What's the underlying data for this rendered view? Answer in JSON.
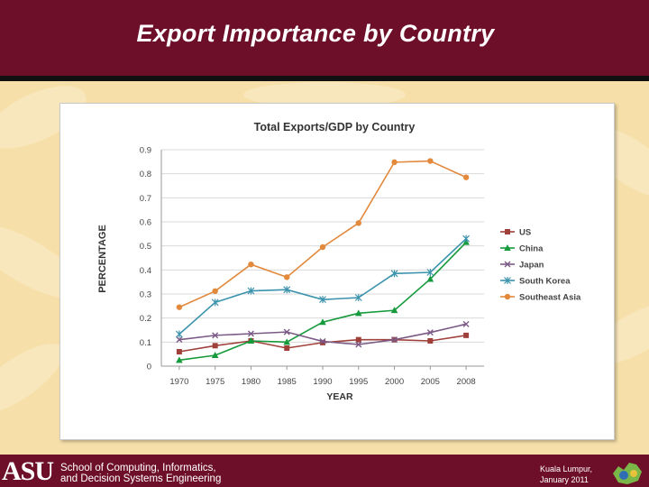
{
  "slide": {
    "title": "Export Importance by Country",
    "footer": {
      "logo": "ASU",
      "school_line1": "School of Computing, Informatics,",
      "school_line2": "and Decision Systems Engineering",
      "location": "Kuala Lumpur,",
      "date": "January 2011"
    }
  },
  "colors": {
    "header_bg": "#6e0f2a",
    "background": "#f6dfa8",
    "US": "#a0403a",
    "China": "#169a3c",
    "Japan": "#7b5a86",
    "South Korea": "#3c93ad",
    "Southeast Asia": "#e2893c"
  },
  "chart_data": {
    "type": "line",
    "title": "Total Exports/GDP by Country",
    "xlabel": "YEAR",
    "ylabel": "PERCENTAGE",
    "categories": [
      "1970",
      "1975",
      "1980",
      "1985",
      "1990",
      "1995",
      "2000",
      "2005",
      "2008"
    ],
    "yticks": [
      "0",
      "0.1",
      "0.2",
      "0.3",
      "0.4",
      "0.5",
      "0.6",
      "0.7",
      "0.8",
      "0.9"
    ],
    "ylim": [
      0,
      0.9
    ],
    "grid": "horizontal",
    "legend": "right",
    "series": [
      {
        "name": "US",
        "marker": "square",
        "values": [
          0.06,
          0.085,
          0.105,
          0.075,
          0.098,
          0.11,
          0.11,
          0.105,
          0.128
        ]
      },
      {
        "name": "China",
        "marker": "triangle",
        "values": [
          0.025,
          0.045,
          0.105,
          0.1,
          0.183,
          0.22,
          0.232,
          0.362,
          0.515
        ]
      },
      {
        "name": "Japan",
        "marker": "x",
        "values": [
          0.11,
          0.128,
          0.135,
          0.142,
          0.103,
          0.09,
          0.11,
          0.14,
          0.175
        ]
      },
      {
        "name": "South Korea",
        "marker": "star",
        "values": [
          0.133,
          0.265,
          0.313,
          0.318,
          0.277,
          0.285,
          0.385,
          0.39,
          0.53
        ]
      },
      {
        "name": "Southeast Asia",
        "marker": "circle",
        "values": [
          0.245,
          0.312,
          0.423,
          0.37,
          0.495,
          0.595,
          0.848,
          0.853,
          0.785
        ]
      }
    ]
  }
}
